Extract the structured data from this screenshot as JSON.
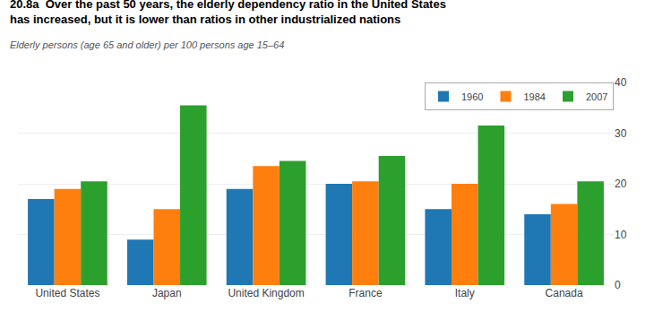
{
  "chart_data": {
    "type": "bar",
    "title": "20.8a  Over the past 50 years, the elderly dependency ratio in the United States\nhas increased, but it is lower than ratios in other industrialized nations",
    "subtitle": "Elderly persons (age 65 and older) per 100 persons age 15–64",
    "categories": [
      "United States",
      "Japan",
      "United Kingdom",
      "France",
      "Italy",
      "Canada"
    ],
    "series": [
      {
        "name": "1960",
        "values": [
          17.0,
          9.0,
          19.0,
          20.0,
          15.0,
          14.0
        ]
      },
      {
        "name": "1984",
        "values": [
          19.0,
          15.0,
          23.5,
          20.5,
          20.0,
          16.0
        ]
      },
      {
        "name": "2007",
        "values": [
          20.5,
          35.5,
          24.5,
          25.5,
          31.5,
          20.5
        ]
      }
    ],
    "ylim": [
      0,
      40
    ],
    "yticks": [
      0,
      10,
      20,
      30,
      40
    ],
    "grid": true,
    "legend": "upper right"
  }
}
